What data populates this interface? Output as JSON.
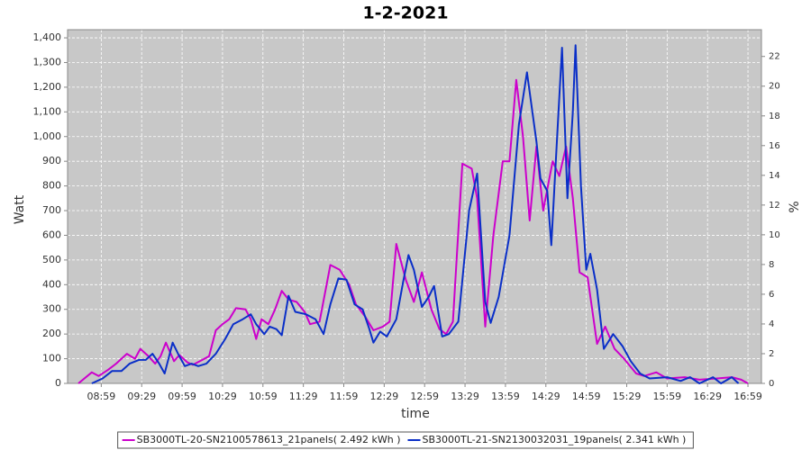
{
  "chart_data": {
    "type": "line",
    "title": "1-2-2021",
    "x_label": "time",
    "y_label": "Watt",
    "y2_label": "%",
    "xlim": [
      "08:34",
      "17:09"
    ],
    "xticks": [
      "08:59",
      "09:29",
      "09:59",
      "10:29",
      "10:59",
      "11:29",
      "11:59",
      "12:29",
      "12:59",
      "13:29",
      "13:59",
      "14:29",
      "14:59",
      "15:29",
      "15:59",
      "16:29",
      "16:59"
    ],
    "ylim": [
      0,
      1433
    ],
    "yticks": [
      0,
      100,
      200,
      300,
      400,
      500,
      600,
      700,
      800,
      900,
      {
        "value": 1000,
        "label": "1,000"
      },
      {
        "value": 1100,
        "label": "1,100"
      },
      {
        "value": 1200,
        "label": "1,200"
      },
      {
        "value": 1300,
        "label": "1,300"
      },
      {
        "value": 1400,
        "label": "1,400"
      }
    ],
    "y2lim": [
      0,
      23.8
    ],
    "y2ticks": [
      0,
      2,
      4,
      6,
      8,
      10,
      12,
      14,
      16,
      18,
      20,
      22
    ],
    "grid": true,
    "legend": "bottom",
    "background": "#c8c8c8",
    "series": [
      {
        "name": "SB3000TL-20-SN2100578613_21panels( 2.492 kWh )",
        "color": "#cc00cc",
        "x": [
          "08:42",
          "08:52",
          "08:57",
          "09:04",
          "09:10",
          "09:18",
          "09:24",
          "09:28",
          "09:34",
          "09:39",
          "09:43",
          "09:47",
          "09:53",
          "09:57",
          "10:03",
          "10:07",
          "10:14",
          "10:19",
          "10:24",
          "10:29",
          "10:34",
          "10:39",
          "10:46",
          "10:50",
          "10:54",
          "10:58",
          "11:03",
          "11:08",
          "11:13",
          "11:18",
          "11:24",
          "11:30",
          "11:34",
          "11:41",
          "11:49",
          "11:56",
          "12:03",
          "12:08",
          "12:15",
          "12:21",
          "12:28",
          "12:33",
          "12:38",
          "12:45",
          "12:51",
          "12:57",
          "13:04",
          "13:10",
          "13:15",
          "13:20",
          "13:27",
          "13:34",
          "13:38",
          "13:44",
          "13:50",
          "13:57",
          "14:02",
          "14:07",
          "14:12",
          "14:17",
          "14:22",
          "14:27",
          "14:34",
          "14:39",
          "14:44",
          "14:49",
          "14:54",
          "15:00",
          "15:07",
          "15:13",
          "15:20",
          "15:27",
          "15:36",
          "15:42",
          "15:51",
          "15:59",
          "16:12",
          "16:23",
          "16:36",
          "16:47",
          "16:54",
          "16:59"
        ],
        "values": [
          0,
          45,
          30,
          55,
          80,
          120,
          100,
          140,
          110,
          80,
          110,
          165,
          90,
          115,
          85,
          75,
          95,
          110,
          215,
          240,
          260,
          305,
          300,
          260,
          180,
          260,
          240,
          300,
          375,
          340,
          330,
          290,
          240,
          250,
          480,
          460,
          400,
          320,
          270,
          215,
          230,
          250,
          565,
          420,
          330,
          450,
          300,
          220,
          200,
          250,
          890,
          870,
          750,
          230,
          600,
          900,
          900,
          1230,
          1000,
          660,
          960,
          700,
          900,
          840,
          960,
          750,
          450,
          430,
          160,
          230,
          140,
          100,
          40,
          30,
          45,
          20,
          25,
          15,
          20,
          25,
          15,
          0
        ]
      },
      {
        "name": "SB3000TL-21-SN2130032031_19panels( 2.341 kWh )",
        "color": "#0a2fc8",
        "x": [
          "08:52",
          "09:00",
          "09:07",
          "09:14",
          "09:20",
          "09:27",
          "09:32",
          "09:37",
          "09:42",
          "09:46",
          "09:52",
          "09:56",
          "10:01",
          "10:06",
          "10:11",
          "10:17",
          "10:24",
          "10:31",
          "10:37",
          "10:44",
          "10:50",
          "10:54",
          "11:00",
          "11:04",
          "11:09",
          "11:13",
          "11:18",
          "11:23",
          "11:31",
          "11:38",
          "11:44",
          "11:49",
          "11:55",
          "12:01",
          "12:07",
          "12:13",
          "12:18",
          "12:21",
          "12:26",
          "12:31",
          "12:38",
          "12:43",
          "12:47",
          "12:51",
          "12:57",
          "13:02",
          "13:06",
          "13:12",
          "13:17",
          "13:24",
          "13:32",
          "13:38",
          "13:44",
          "13:48",
          "13:54",
          "14:02",
          "14:09",
          "14:15",
          "14:22",
          "14:25",
          "14:30",
          "14:33",
          "14:37",
          "14:41",
          "14:45",
          "14:49",
          "14:51",
          "14:55",
          "14:59",
          "15:02",
          "15:07",
          "15:12",
          "15:19",
          "15:26",
          "15:32",
          "15:39",
          "15:46",
          "15:59",
          "16:09",
          "16:16",
          "16:23",
          "16:33",
          "16:39",
          "16:47",
          "16:52"
        ],
        "values": [
          0,
          20,
          50,
          50,
          80,
          95,
          95,
          120,
          80,
          40,
          165,
          120,
          70,
          80,
          70,
          80,
          120,
          180,
          240,
          260,
          280,
          240,
          200,
          230,
          220,
          195,
          355,
          290,
          280,
          260,
          200,
          320,
          425,
          420,
          320,
          300,
          220,
          165,
          210,
          190,
          260,
          410,
          520,
          460,
          310,
          350,
          395,
          190,
          200,
          250,
          700,
          850,
          330,
          245,
          350,
          600,
          1050,
          1260,
          980,
          830,
          780,
          560,
          960,
          1360,
          750,
          1100,
          1370,
          800,
          460,
          525,
          380,
          140,
          200,
          150,
          90,
          40,
          20,
          25,
          10,
          25,
          0,
          25,
          0,
          25,
          0
        ]
      }
    ]
  }
}
